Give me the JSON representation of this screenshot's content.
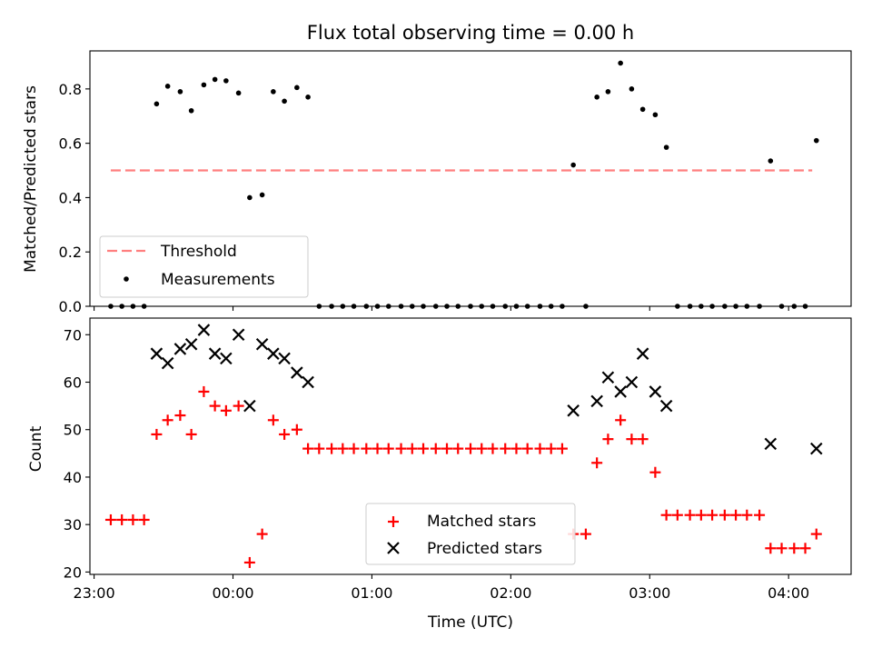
{
  "chart_data": [
    {
      "type": "scatter",
      "title": "Flux total observing time = 0.00 h",
      "xlabel": "",
      "ylabel": "Matched/Predicted stars",
      "xlim": [
        -1.03,
        4.45
      ],
      "ylim": [
        0,
        0.94
      ],
      "yticks": [
        0.0,
        0.2,
        0.4,
        0.6,
        0.8
      ],
      "ytick_labels": [
        "0.0",
        "0.2",
        "0.4",
        "0.6",
        "0.8"
      ],
      "xticks": [
        -1,
        0,
        1,
        2,
        3,
        4
      ],
      "legend": {
        "location": "lower-left",
        "entries": [
          "Threshold",
          "Measurements"
        ]
      },
      "threshold": {
        "name": "Threshold",
        "color": "#ff7f7f",
        "x": [
          -0.88,
          4.17
        ],
        "y": 0.5
      },
      "series": [
        {
          "name": "Measurements",
          "color": "#000000",
          "points": [
            [
              -0.88,
              0
            ],
            [
              -0.8,
              0
            ],
            [
              -0.72,
              0
            ],
            [
              -0.64,
              0
            ],
            [
              -0.55,
              0.745
            ],
            [
              -0.47,
              0.81
            ],
            [
              -0.38,
              0.79
            ],
            [
              -0.3,
              0.72
            ],
            [
              -0.21,
              0.815
            ],
            [
              -0.13,
              0.835
            ],
            [
              -0.05,
              0.83
            ],
            [
              0.04,
              0.785
            ],
            [
              0.12,
              0.4
            ],
            [
              0.21,
              0.41
            ],
            [
              0.29,
              0.79
            ],
            [
              0.37,
              0.755
            ],
            [
              0.46,
              0.805
            ],
            [
              0.54,
              0.77
            ],
            [
              0.62,
              0
            ],
            [
              0.71,
              0
            ],
            [
              0.79,
              0
            ],
            [
              0.87,
              0
            ],
            [
              0.96,
              0
            ],
            [
              1.04,
              0
            ],
            [
              1.12,
              0
            ],
            [
              1.21,
              0
            ],
            [
              1.29,
              0
            ],
            [
              1.37,
              0
            ],
            [
              1.46,
              0
            ],
            [
              1.54,
              0
            ],
            [
              1.62,
              0
            ],
            [
              1.71,
              0
            ],
            [
              1.79,
              0
            ],
            [
              1.87,
              0
            ],
            [
              1.96,
              0
            ],
            [
              2.04,
              0
            ],
            [
              2.12,
              0
            ],
            [
              2.21,
              0
            ],
            [
              2.29,
              0
            ],
            [
              2.37,
              0
            ],
            [
              2.45,
              0.52
            ],
            [
              2.54,
              0
            ],
            [
              2.62,
              0.77
            ],
            [
              2.7,
              0.79
            ],
            [
              2.79,
              0.895
            ],
            [
              2.87,
              0.8
            ],
            [
              2.95,
              0.725
            ],
            [
              3.04,
              0.705
            ],
            [
              3.12,
              0.585
            ],
            [
              3.2,
              0
            ],
            [
              3.29,
              0
            ],
            [
              3.37,
              0
            ],
            [
              3.45,
              0
            ],
            [
              3.54,
              0
            ],
            [
              3.62,
              0
            ],
            [
              3.7,
              0
            ],
            [
              3.79,
              0
            ],
            [
              3.87,
              0.535
            ],
            [
              3.95,
              0
            ],
            [
              4.04,
              0
            ],
            [
              4.12,
              0
            ],
            [
              4.2,
              0.61
            ]
          ]
        }
      ]
    },
    {
      "type": "scatter",
      "title": "",
      "xlabel": "Time (UTC)",
      "ylabel": "Count",
      "xlim": [
        -1.03,
        4.45
      ],
      "ylim": [
        19.5,
        73.5
      ],
      "yticks": [
        20,
        30,
        40,
        50,
        60,
        70
      ],
      "ytick_labels": [
        "20",
        "30",
        "40",
        "50",
        "60",
        "70"
      ],
      "xticks": [
        -1,
        0,
        1,
        2,
        3,
        4
      ],
      "xtick_labels": [
        "23:00",
        "00:00",
        "01:00",
        "02:00",
        "03:00",
        "04:00"
      ],
      "legend": {
        "location": "lower-center",
        "entries": [
          "Matched stars",
          "Predicted stars"
        ]
      },
      "series": [
        {
          "name": "Matched stars",
          "marker": "+",
          "color": "#ff0000",
          "points": [
            [
              -0.88,
              31
            ],
            [
              -0.8,
              31
            ],
            [
              -0.72,
              31
            ],
            [
              -0.64,
              31
            ],
            [
              -0.55,
              49
            ],
            [
              -0.47,
              52
            ],
            [
              -0.38,
              53
            ],
            [
              -0.3,
              49
            ],
            [
              -0.21,
              58
            ],
            [
              -0.13,
              55
            ],
            [
              -0.05,
              54
            ],
            [
              0.04,
              55
            ],
            [
              0.12,
              22
            ],
            [
              0.21,
              28
            ],
            [
              0.29,
              52
            ],
            [
              0.37,
              49
            ],
            [
              0.46,
              50
            ],
            [
              0.54,
              46
            ],
            [
              0.62,
              46
            ],
            [
              0.71,
              46
            ],
            [
              0.79,
              46
            ],
            [
              0.87,
              46
            ],
            [
              0.96,
              46
            ],
            [
              1.04,
              46
            ],
            [
              1.12,
              46
            ],
            [
              1.21,
              46
            ],
            [
              1.29,
              46
            ],
            [
              1.37,
              46
            ],
            [
              1.46,
              46
            ],
            [
              1.54,
              46
            ],
            [
              1.62,
              46
            ],
            [
              1.71,
              46
            ],
            [
              1.79,
              46
            ],
            [
              1.87,
              46
            ],
            [
              1.96,
              46
            ],
            [
              2.04,
              46
            ],
            [
              2.12,
              46
            ],
            [
              2.21,
              46
            ],
            [
              2.29,
              46
            ],
            [
              2.37,
              46
            ],
            [
              2.45,
              28
            ],
            [
              2.54,
              28
            ],
            [
              2.62,
              43
            ],
            [
              2.7,
              48
            ],
            [
              2.79,
              52
            ],
            [
              2.87,
              48
            ],
            [
              2.95,
              48
            ],
            [
              3.04,
              41
            ],
            [
              3.12,
              32
            ],
            [
              3.2,
              32
            ],
            [
              3.29,
              32
            ],
            [
              3.37,
              32
            ],
            [
              3.45,
              32
            ],
            [
              3.54,
              32
            ],
            [
              3.62,
              32
            ],
            [
              3.7,
              32
            ],
            [
              3.79,
              32
            ],
            [
              3.87,
              25
            ],
            [
              3.95,
              25
            ],
            [
              4.04,
              25
            ],
            [
              4.12,
              25
            ],
            [
              4.2,
              28
            ]
          ]
        },
        {
          "name": "Predicted stars",
          "marker": "x",
          "color": "#000000",
          "points": [
            [
              -0.55,
              66
            ],
            [
              -0.47,
              64
            ],
            [
              -0.38,
              67
            ],
            [
              -0.3,
              68
            ],
            [
              -0.21,
              71
            ],
            [
              -0.13,
              66
            ],
            [
              -0.05,
              65
            ],
            [
              0.04,
              70
            ],
            [
              0.12,
              55
            ],
            [
              0.21,
              68
            ],
            [
              0.29,
              66
            ],
            [
              0.37,
              65
            ],
            [
              0.46,
              62
            ],
            [
              0.54,
              60
            ],
            [
              2.45,
              54
            ],
            [
              2.62,
              56
            ],
            [
              2.7,
              61
            ],
            [
              2.79,
              58
            ],
            [
              2.87,
              60
            ],
            [
              2.95,
              66
            ],
            [
              3.04,
              58
            ],
            [
              3.12,
              55
            ],
            [
              3.87,
              47
            ],
            [
              4.2,
              46
            ]
          ]
        }
      ]
    }
  ]
}
